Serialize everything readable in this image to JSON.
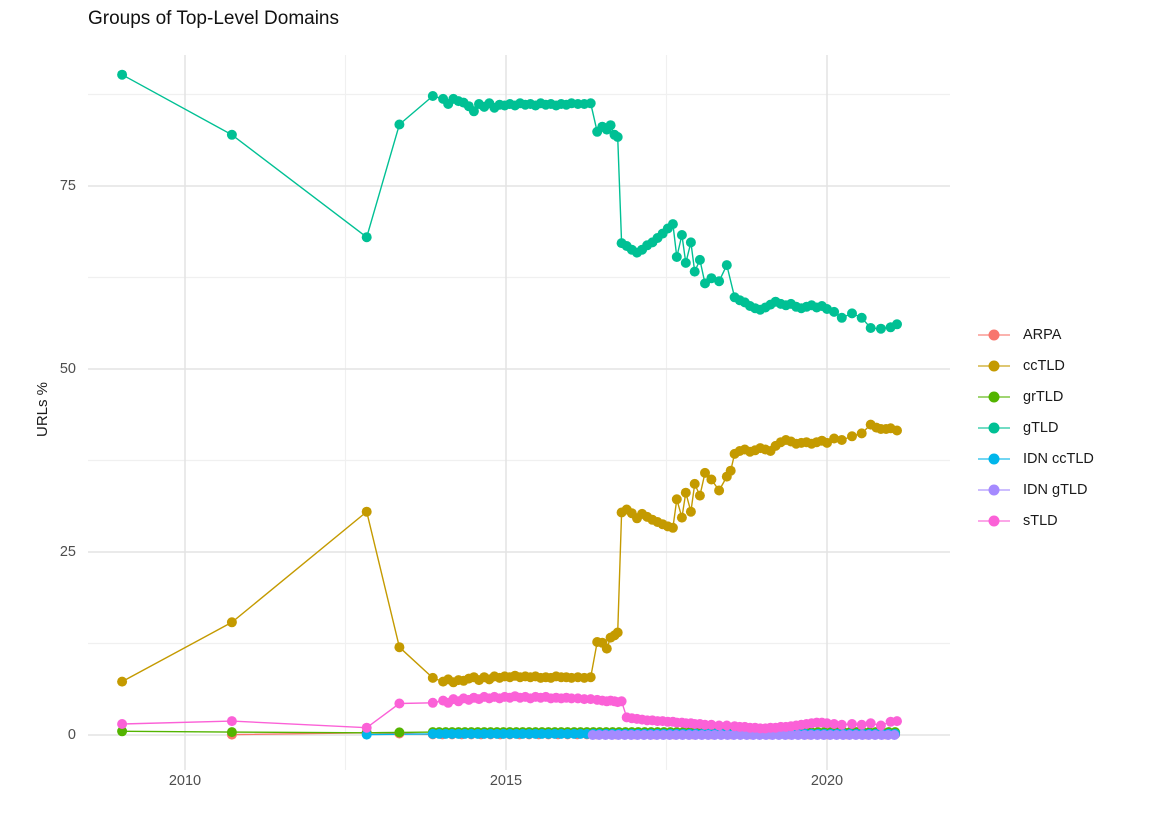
{
  "title": "Groups of Top-Level Domains",
  "chart_data": {
    "type": "line",
    "title": "Groups of Top-Level Domains",
    "xlabel": "",
    "ylabel": "URLs %",
    "grid": true,
    "legend_position": "right",
    "x_axis": {
      "ticks": [
        2010,
        2015,
        2020
      ],
      "tick_labels": [
        "2010",
        "2015",
        "2020"
      ],
      "minor_ticks": [
        2012.5,
        2017.5
      ],
      "range": [
        2008.5,
        2021.9
      ]
    },
    "y_axis": {
      "ticks": [
        0,
        25,
        50,
        75
      ],
      "tick_labels": [
        "0",
        "25",
        "50",
        "75"
      ],
      "minor_ticks": [
        12.5,
        37.5,
        62.5,
        87.5
      ],
      "range": [
        -5,
        93
      ]
    },
    "series": [
      {
        "name": "ARPA",
        "color": "#F8766D",
        "points": [
          [
            2010.73,
            0.05
          ],
          [
            2012.83,
            0.3
          ],
          [
            2013.34,
            0.2
          ]
        ],
        "runs": [
          {
            "from": 2013.86,
            "to": 2021.09,
            "step": 0.15,
            "value": 0.08
          }
        ]
      },
      {
        "name": "ccTLD",
        "color": "#C49A00",
        "points": [
          [
            2009.02,
            7.3
          ],
          [
            2010.73,
            15.4
          ],
          [
            2012.83,
            30.5
          ],
          [
            2013.34,
            12.0
          ],
          [
            2013.86,
            7.8
          ],
          [
            2014.02,
            7.3
          ],
          [
            2014.1,
            7.6
          ],
          [
            2014.18,
            7.2
          ],
          [
            2014.26,
            7.5
          ],
          [
            2014.34,
            7.4
          ],
          [
            2014.42,
            7.7
          ],
          [
            2014.5,
            7.9
          ],
          [
            2014.58,
            7.5
          ],
          [
            2014.66,
            7.9
          ],
          [
            2014.74,
            7.6
          ],
          [
            2014.82,
            8.0
          ],
          [
            2014.9,
            7.8
          ],
          [
            2014.98,
            8.0
          ],
          [
            2015.06,
            7.9
          ],
          [
            2015.14,
            8.1
          ],
          [
            2015.22,
            7.9
          ],
          [
            2015.3,
            8.0
          ],
          [
            2015.38,
            7.9
          ],
          [
            2015.46,
            8.0
          ],
          [
            2015.54,
            7.8
          ],
          [
            2015.62,
            7.9
          ],
          [
            2015.7,
            7.8
          ],
          [
            2015.78,
            8.0
          ],
          [
            2015.86,
            7.9
          ],
          [
            2015.94,
            7.9
          ],
          [
            2016.02,
            7.8
          ],
          [
            2016.12,
            7.9
          ],
          [
            2016.22,
            7.8
          ],
          [
            2016.32,
            7.9
          ],
          [
            2016.42,
            12.7
          ],
          [
            2016.5,
            12.6
          ],
          [
            2016.57,
            11.8
          ],
          [
            2016.63,
            13.3
          ],
          [
            2016.69,
            13.6
          ],
          [
            2016.74,
            14.0
          ],
          [
            2016.8,
            30.4
          ],
          [
            2016.88,
            30.8
          ],
          [
            2016.96,
            30.3
          ],
          [
            2017.04,
            29.6
          ],
          [
            2017.12,
            30.2
          ],
          [
            2017.2,
            29.8
          ],
          [
            2017.28,
            29.4
          ],
          [
            2017.36,
            29.1
          ],
          [
            2017.44,
            28.8
          ],
          [
            2017.52,
            28.5
          ],
          [
            2017.6,
            28.3
          ],
          [
            2017.66,
            32.2
          ],
          [
            2017.74,
            29.7
          ],
          [
            2017.8,
            33.1
          ],
          [
            2017.88,
            30.5
          ],
          [
            2017.94,
            34.3
          ],
          [
            2018.02,
            32.7
          ],
          [
            2018.1,
            35.8
          ],
          [
            2018.2,
            34.9
          ],
          [
            2018.32,
            33.4
          ],
          [
            2018.44,
            35.3
          ],
          [
            2018.5,
            36.1
          ],
          [
            2018.56,
            38.4
          ],
          [
            2018.64,
            38.8
          ],
          [
            2018.72,
            39.0
          ],
          [
            2018.8,
            38.7
          ],
          [
            2018.88,
            38.9
          ],
          [
            2018.96,
            39.2
          ],
          [
            2019.04,
            39.0
          ],
          [
            2019.12,
            38.8
          ],
          [
            2019.2,
            39.5
          ],
          [
            2019.28,
            40.0
          ],
          [
            2019.36,
            40.3
          ],
          [
            2019.44,
            40.1
          ],
          [
            2019.52,
            39.8
          ],
          [
            2019.6,
            39.9
          ],
          [
            2019.68,
            40.0
          ],
          [
            2019.76,
            39.8
          ],
          [
            2019.84,
            40.0
          ],
          [
            2019.92,
            40.2
          ],
          [
            2020.0,
            39.9
          ],
          [
            2020.11,
            40.5
          ],
          [
            2020.23,
            40.3
          ],
          [
            2020.39,
            40.8
          ],
          [
            2020.54,
            41.2
          ],
          [
            2020.68,
            42.4
          ],
          [
            2020.77,
            42.0
          ],
          [
            2020.84,
            41.8
          ],
          [
            2020.92,
            41.8
          ],
          [
            2020.99,
            41.9
          ],
          [
            2021.09,
            41.6
          ]
        ]
      },
      {
        "name": "grTLD",
        "color": "#53B400",
        "points": [
          [
            2009.02,
            0.5
          ],
          [
            2010.73,
            0.4
          ],
          [
            2012.83,
            0.3
          ],
          [
            2013.34,
            0.35
          ]
        ],
        "runs": [
          {
            "from": 2013.86,
            "to": 2021.09,
            "step": 0.1,
            "value": 0.4
          }
        ]
      },
      {
        "name": "gTLD",
        "color": "#00C094",
        "points": [
          [
            2009.02,
            90.2
          ],
          [
            2010.73,
            82.0
          ],
          [
            2012.83,
            68.0
          ],
          [
            2013.34,
            83.4
          ],
          [
            2013.86,
            87.3
          ],
          [
            2014.02,
            86.9
          ],
          [
            2014.1,
            86.2
          ],
          [
            2014.18,
            86.9
          ],
          [
            2014.26,
            86.6
          ],
          [
            2014.34,
            86.4
          ],
          [
            2014.42,
            85.9
          ],
          [
            2014.5,
            85.2
          ],
          [
            2014.58,
            86.2
          ],
          [
            2014.66,
            85.8
          ],
          [
            2014.74,
            86.3
          ],
          [
            2014.82,
            85.7
          ],
          [
            2014.9,
            86.1
          ],
          [
            2014.98,
            86.0
          ],
          [
            2015.06,
            86.2
          ],
          [
            2015.14,
            86.0
          ],
          [
            2015.22,
            86.3
          ],
          [
            2015.3,
            86.1
          ],
          [
            2015.38,
            86.2
          ],
          [
            2015.46,
            86.0
          ],
          [
            2015.54,
            86.3
          ],
          [
            2015.62,
            86.1
          ],
          [
            2015.7,
            86.2
          ],
          [
            2015.78,
            86.0
          ],
          [
            2015.86,
            86.2
          ],
          [
            2015.94,
            86.1
          ],
          [
            2016.02,
            86.3
          ],
          [
            2016.12,
            86.2
          ],
          [
            2016.22,
            86.2
          ],
          [
            2016.32,
            86.3
          ],
          [
            2016.42,
            82.4
          ],
          [
            2016.5,
            83.1
          ],
          [
            2016.57,
            82.7
          ],
          [
            2016.63,
            83.3
          ],
          [
            2016.69,
            82.0
          ],
          [
            2016.74,
            81.7
          ],
          [
            2016.8,
            67.2
          ],
          [
            2016.88,
            66.8
          ],
          [
            2016.96,
            66.3
          ],
          [
            2017.04,
            65.9
          ],
          [
            2017.12,
            66.3
          ],
          [
            2017.2,
            66.9
          ],
          [
            2017.28,
            67.3
          ],
          [
            2017.36,
            67.9
          ],
          [
            2017.44,
            68.5
          ],
          [
            2017.52,
            69.2
          ],
          [
            2017.6,
            69.8
          ],
          [
            2017.66,
            65.3
          ],
          [
            2017.74,
            68.3
          ],
          [
            2017.8,
            64.5
          ],
          [
            2017.88,
            67.3
          ],
          [
            2017.94,
            63.3
          ],
          [
            2018.02,
            64.9
          ],
          [
            2018.1,
            61.7
          ],
          [
            2018.2,
            62.4
          ],
          [
            2018.32,
            62.0
          ],
          [
            2018.44,
            64.2
          ],
          [
            2018.56,
            59.8
          ],
          [
            2018.64,
            59.4
          ],
          [
            2018.72,
            59.1
          ],
          [
            2018.8,
            58.6
          ],
          [
            2018.88,
            58.3
          ],
          [
            2018.96,
            58.1
          ],
          [
            2019.04,
            58.4
          ],
          [
            2019.12,
            58.8
          ],
          [
            2019.2,
            59.2
          ],
          [
            2019.28,
            58.9
          ],
          [
            2019.36,
            58.7
          ],
          [
            2019.44,
            58.9
          ],
          [
            2019.52,
            58.5
          ],
          [
            2019.6,
            58.3
          ],
          [
            2019.68,
            58.5
          ],
          [
            2019.76,
            58.7
          ],
          [
            2019.84,
            58.4
          ],
          [
            2019.92,
            58.6
          ],
          [
            2020.0,
            58.2
          ],
          [
            2020.11,
            57.8
          ],
          [
            2020.23,
            57.0
          ],
          [
            2020.39,
            57.6
          ],
          [
            2020.54,
            57.0
          ],
          [
            2020.68,
            55.6
          ],
          [
            2020.84,
            55.5
          ],
          [
            2020.99,
            55.7
          ],
          [
            2021.09,
            56.1
          ]
        ]
      },
      {
        "name": "IDN ccTLD",
        "color": "#00B6EB",
        "points": [
          [
            2012.83,
            0.05
          ]
        ],
        "runs": [
          {
            "from": 2013.86,
            "to": 2021.09,
            "step": 0.1,
            "value": 0.15
          }
        ]
      },
      {
        "name": "IDN gTLD",
        "color": "#A58AFF",
        "points": [],
        "runs": [
          {
            "from": 2016.35,
            "to": 2021.09,
            "step": 0.1,
            "value": 0.0
          }
        ]
      },
      {
        "name": "sTLD",
        "color": "#FB61D7",
        "points": [
          [
            2009.02,
            1.5
          ],
          [
            2010.73,
            1.9
          ],
          [
            2012.83,
            1.0
          ],
          [
            2013.34,
            4.3
          ],
          [
            2013.86,
            4.4
          ],
          [
            2014.02,
            4.7
          ],
          [
            2014.1,
            4.4
          ],
          [
            2014.18,
            4.9
          ],
          [
            2014.26,
            4.6
          ],
          [
            2014.34,
            5.0
          ],
          [
            2014.42,
            4.8
          ],
          [
            2014.5,
            5.1
          ],
          [
            2014.58,
            4.9
          ],
          [
            2014.66,
            5.2
          ],
          [
            2014.74,
            5.0
          ],
          [
            2014.82,
            5.2
          ],
          [
            2014.9,
            5.0
          ],
          [
            2014.98,
            5.2
          ],
          [
            2015.06,
            5.1
          ],
          [
            2015.14,
            5.3
          ],
          [
            2015.22,
            5.1
          ],
          [
            2015.3,
            5.2
          ],
          [
            2015.38,
            5.0
          ],
          [
            2015.46,
            5.2
          ],
          [
            2015.54,
            5.1
          ],
          [
            2015.62,
            5.2
          ],
          [
            2015.7,
            5.0
          ],
          [
            2015.78,
            5.1
          ],
          [
            2015.86,
            5.0
          ],
          [
            2015.94,
            5.1
          ],
          [
            2016.02,
            5.0
          ],
          [
            2016.12,
            5.0
          ],
          [
            2016.22,
            4.9
          ],
          [
            2016.32,
            4.9
          ],
          [
            2016.42,
            4.8
          ],
          [
            2016.5,
            4.7
          ],
          [
            2016.57,
            4.6
          ],
          [
            2016.63,
            4.7
          ],
          [
            2016.69,
            4.6
          ],
          [
            2016.74,
            4.5
          ],
          [
            2016.8,
            4.6
          ],
          [
            2016.88,
            2.4
          ],
          [
            2016.96,
            2.3
          ],
          [
            2017.04,
            2.2
          ],
          [
            2017.12,
            2.1
          ],
          [
            2017.2,
            2.0
          ],
          [
            2017.28,
            2.0
          ],
          [
            2017.36,
            1.9
          ],
          [
            2017.44,
            1.9
          ],
          [
            2017.52,
            1.8
          ],
          [
            2017.6,
            1.8
          ],
          [
            2017.66,
            1.7
          ],
          [
            2017.74,
            1.7
          ],
          [
            2017.8,
            1.6
          ],
          [
            2017.88,
            1.6
          ],
          [
            2017.94,
            1.5
          ],
          [
            2018.02,
            1.5
          ],
          [
            2018.1,
            1.4
          ],
          [
            2018.2,
            1.4
          ],
          [
            2018.32,
            1.3
          ],
          [
            2018.44,
            1.3
          ],
          [
            2018.56,
            1.2
          ],
          [
            2018.64,
            1.1
          ],
          [
            2018.72,
            1.1
          ],
          [
            2018.8,
            1.0
          ],
          [
            2018.88,
            1.0
          ],
          [
            2018.96,
            0.9
          ],
          [
            2019.04,
            0.9
          ],
          [
            2019.12,
            1.0
          ],
          [
            2019.2,
            1.0
          ],
          [
            2019.28,
            1.1
          ],
          [
            2019.36,
            1.1
          ],
          [
            2019.44,
            1.2
          ],
          [
            2019.52,
            1.3
          ],
          [
            2019.6,
            1.4
          ],
          [
            2019.68,
            1.5
          ],
          [
            2019.76,
            1.6
          ],
          [
            2019.84,
            1.7
          ],
          [
            2019.92,
            1.7
          ],
          [
            2020.0,
            1.6
          ],
          [
            2020.11,
            1.5
          ],
          [
            2020.23,
            1.4
          ],
          [
            2020.39,
            1.5
          ],
          [
            2020.54,
            1.4
          ],
          [
            2020.68,
            1.6
          ],
          [
            2020.84,
            1.3
          ],
          [
            2020.99,
            1.8
          ],
          [
            2021.09,
            1.9
          ]
        ]
      }
    ]
  }
}
